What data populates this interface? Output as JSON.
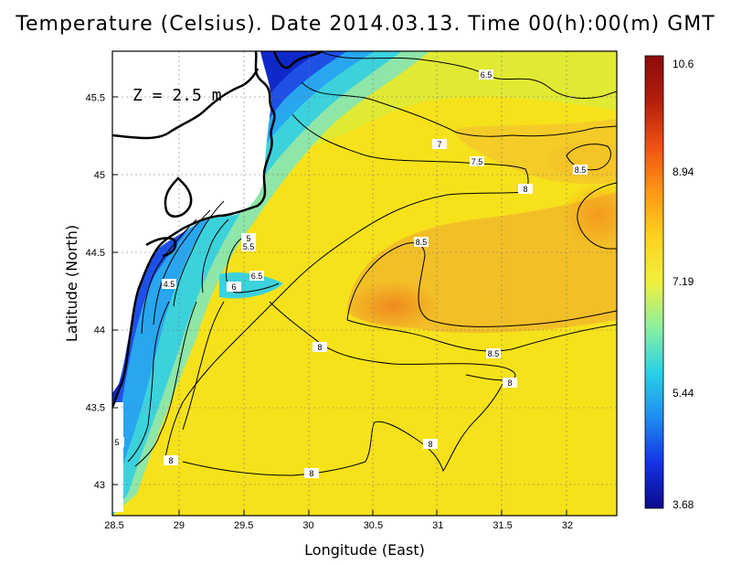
{
  "title": "Temperature (Celsius). Date 2014.03.13. Time 00(h):00(m) GMT",
  "depth_label": "Z = 2.5 m",
  "x_axis": {
    "label": "Longitude (East)",
    "ticks": [
      "28.5",
      "29",
      "29.5",
      "30",
      "30.5",
      "31",
      "31.5",
      "32"
    ]
  },
  "y_axis": {
    "label": "Latitude (North)",
    "ticks": [
      "43",
      "43.5",
      "44",
      "44.5",
      "45",
      "45.5"
    ]
  },
  "colorbar": {
    "ticks": [
      "10.6",
      "8.94",
      "7.19",
      "5.44",
      "3.68"
    ],
    "colors": [
      "#0a0a8c",
      "#1432e6",
      "#1e8cf0",
      "#28d2e6",
      "#8cf0a0",
      "#f0f03c",
      "#ffd21e",
      "#ff9614",
      "#f05014",
      "#b41e0a",
      "#8c0a0a"
    ]
  },
  "contour_labels": [
    "6.5",
    "7",
    "7.5",
    "8.5",
    "8",
    "5",
    "5.5",
    "6.5",
    "4.5",
    "6",
    "8.5",
    "8",
    "8.5",
    "8",
    "8",
    "8",
    "8",
    "5"
  ],
  "chart_data": {
    "type": "heatmap",
    "title": "Temperature (Celsius). Date 2014.03.13. Time 00(h):00(m) GMT",
    "xlabel": "Longitude (East)",
    "ylabel": "Latitude (North)",
    "xlim": [
      28.5,
      32.4
    ],
    "ylim": [
      42.8,
      45.8
    ],
    "color_range": [
      3.68,
      10.6
    ],
    "contour_levels": [
      4.5,
      5,
      5.5,
      6,
      6.5,
      7,
      7.5,
      8,
      8.5
    ]
  }
}
